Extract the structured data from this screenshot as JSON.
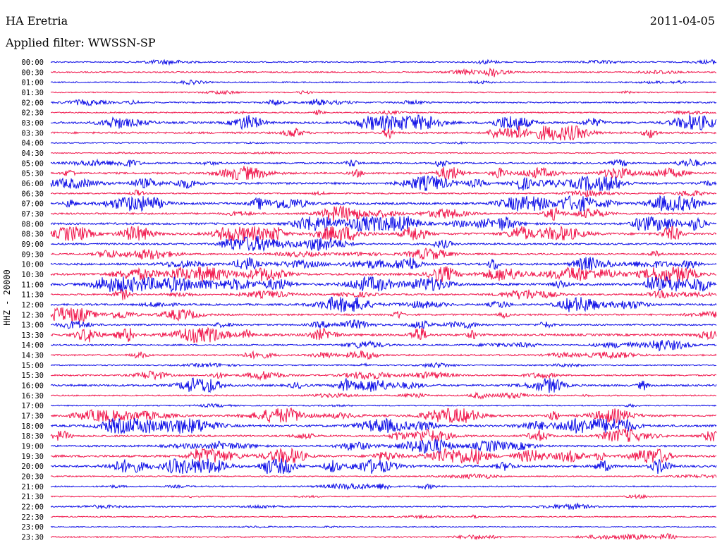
{
  "header": {
    "station": "HA Eretria",
    "date": "2011-04-05",
    "filter": "Applied filter: WWSSN-SP"
  },
  "colors": {
    "even_trace": "#0a0ae6",
    "odd_trace": "#f0144a"
  },
  "chart_data": {
    "type": "line",
    "title": "HA Eretria",
    "ylabel": "HHZ - 20000",
    "grid": false,
    "row_labels": [
      "00:00",
      "00:30",
      "01:00",
      "01:30",
      "02:00",
      "02:30",
      "03:00",
      "03:30",
      "04:00",
      "04:30",
      "05:00",
      "05:30",
      "06:00",
      "06:30",
      "07:00",
      "07:30",
      "08:00",
      "08:30",
      "09:00",
      "09:30",
      "10:00",
      "10:30",
      "11:00",
      "11:30",
      "12:00",
      "12:30",
      "13:00",
      "13:30",
      "14:00",
      "14:30",
      "15:00",
      "15:30",
      "16:00",
      "16:30",
      "17:00",
      "17:30",
      "18:00",
      "18:30",
      "19:00",
      "19:30",
      "20:00",
      "20:30",
      "21:00",
      "21:30",
      "22:00",
      "22:30",
      "23:00",
      "23:30"
    ],
    "activity": [
      0.5,
      0.6,
      0.5,
      0.3,
      0.8,
      0.5,
      1.6,
      1.4,
      0.2,
      0.2,
      1.0,
      1.4,
      1.6,
      0.6,
      1.8,
      1.2,
      1.6,
      1.8,
      1.2,
      1.0,
      1.5,
      1.8,
      2.0,
      1.0,
      1.4,
      1.2,
      1.0,
      1.8,
      0.9,
      0.9,
      0.5,
      0.9,
      1.5,
      0.6,
      0.3,
      1.4,
      1.6,
      1.3,
      1.2,
      1.8,
      1.7,
      0.4,
      0.6,
      0.3,
      0.5,
      0.3,
      0.3,
      0.6
    ]
  }
}
